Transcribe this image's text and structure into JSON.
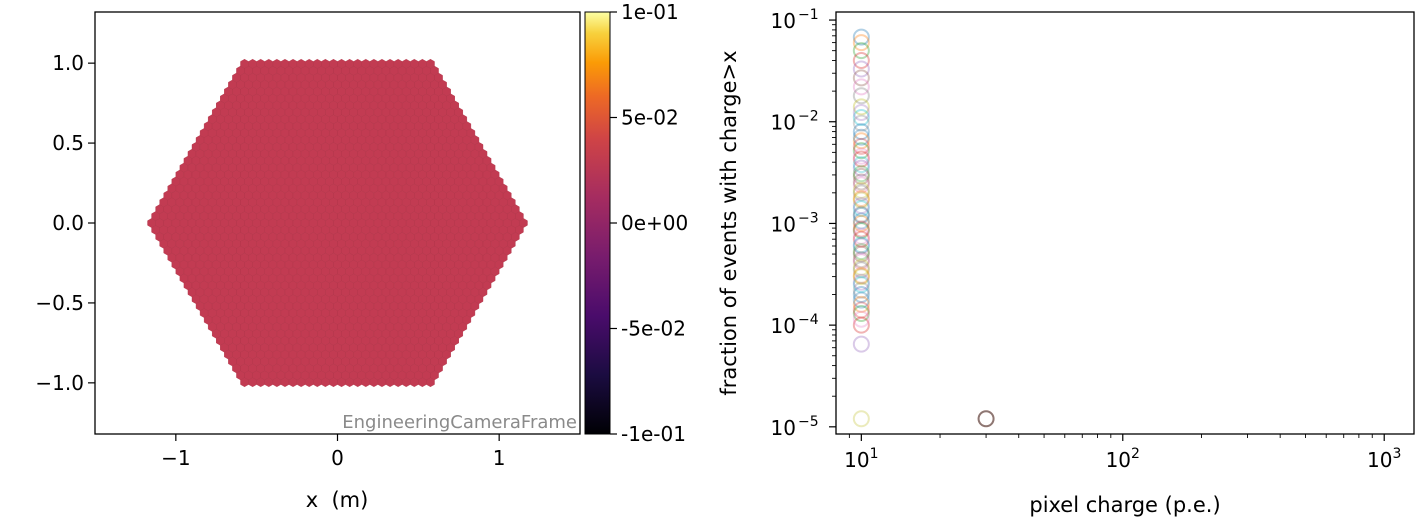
{
  "left_panel": {
    "title": "",
    "frame_label": "EngineeringCameraFrame",
    "xlabel": "x  (m)",
    "ylabel": "",
    "x_ticks": [
      {
        "v": -1,
        "label": "−1"
      },
      {
        "v": 0,
        "label": "0"
      },
      {
        "v": 1,
        "label": "1"
      }
    ],
    "y_ticks": [
      {
        "v": 1.0,
        "label": "1.0"
      },
      {
        "v": 0.5,
        "label": "0.5"
      },
      {
        "v": 0.0,
        "label": "0.0"
      },
      {
        "v": -0.5,
        "label": "−0.5"
      },
      {
        "v": -1.0,
        "label": "−1.0"
      }
    ],
    "pixel_color": "#c23b52",
    "pixel_edge_color": "#b13549"
  },
  "colorbar": {
    "ylabel": "fraction of events with charge>x",
    "range": [
      -0.1,
      0.1
    ],
    "ticks": [
      {
        "v": 0.1,
        "label": "1e-01"
      },
      {
        "v": 0.05,
        "label": "5e-02"
      },
      {
        "v": 0.0,
        "label": "0e+00"
      },
      {
        "v": -0.05,
        "label": "-5e-02"
      },
      {
        "v": -0.1,
        "label": "-1e-01"
      }
    ],
    "colormap": "inferno"
  },
  "right_panel": {
    "xlabel": "pixel charge (p.e.)",
    "x_ticks": [
      {
        "v": 10,
        "label": "10",
        "exp": "1"
      },
      {
        "v": 100,
        "label": "10",
        "exp": "2"
      },
      {
        "v": 1000,
        "label": "10",
        "exp": "3"
      }
    ],
    "y_ticks": [
      {
        "v": 0.1,
        "label": "10",
        "exp": "−1"
      },
      {
        "v": 0.01,
        "label": "10",
        "exp": "−2"
      },
      {
        "v": 0.001,
        "label": "10",
        "exp": "−3"
      },
      {
        "v": 0.0001,
        "label": "10",
        "exp": "−4"
      },
      {
        "v": 1e-05,
        "label": "10",
        "exp": "−5"
      }
    ]
  },
  "chart_data": [
    {
      "type": "heatmap",
      "title": "",
      "xlabel": "x  (m)",
      "ylabel": "",
      "xlim": [
        -1.5,
        1.5
      ],
      "ylim": [
        -1.32,
        1.32
      ],
      "description_values": "all camera pixels show value 0 (hexagonal camera)",
      "pixel_value": 0,
      "colorbar_label": "fraction of events with charge>x",
      "colorbar_range": [
        -0.1,
        0.1
      ],
      "annotations": [
        "EngineeringCameraFrame"
      ]
    },
    {
      "type": "scatter",
      "xlabel": "pixel charge (p.e.)",
      "ylabel": "fraction of events with charge>x",
      "x_scale": "log",
      "y_scale": "log",
      "xlim": [
        8,
        1300
      ],
      "ylim": [
        8.5e-06,
        0.12
      ],
      "grid": false,
      "series": [
        {
          "x": [
            10,
            10,
            10,
            10,
            10,
            10,
            10,
            10,
            10,
            10,
            10,
            10,
            10,
            10,
            10,
            10,
            10,
            10,
            10,
            10,
            10,
            10,
            10,
            10,
            10,
            10,
            10,
            10,
            10,
            10,
            10,
            10,
            10,
            10,
            10
          ],
          "y": [
            0.068,
            0.06,
            0.05,
            0.04,
            0.033,
            0.027,
            0.022,
            0.018,
            0.014,
            0.011,
            0.008,
            0.0065,
            0.0052,
            0.0043,
            0.0035,
            0.0029,
            0.0024,
            0.002,
            0.0017,
            0.0014,
            0.0012,
            0.001,
            0.00085,
            0.0007,
            0.0006,
            0.0005,
            0.00042,
            0.00035,
            0.0003,
            0.00025,
            0.0002,
            0.00016,
            0.00013,
            0.0001,
            6.5e-05
          ]
        },
        {
          "x": [
            10
          ],
          "y": [
            1.2e-05
          ]
        },
        {
          "x": [
            30
          ],
          "y": [
            1.2e-05
          ]
        }
      ]
    }
  ]
}
